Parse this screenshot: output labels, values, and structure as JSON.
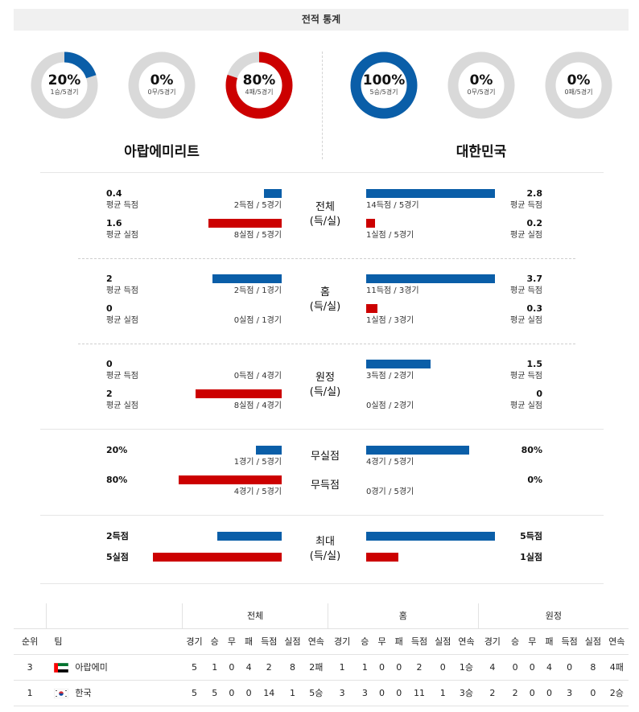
{
  "title": "전적 통계",
  "teams": {
    "left": {
      "name": "아랍에미리트",
      "donuts": [
        {
          "pct": "20%",
          "sub": "1승/5경기",
          "value": 0.2,
          "color": "#0a5ea8"
        },
        {
          "pct": "0%",
          "sub": "0무/5경기",
          "value": 0,
          "color": "#888888"
        },
        {
          "pct": "80%",
          "sub": "4패/5경기",
          "value": 0.8,
          "color": "#cc0000"
        }
      ]
    },
    "right": {
      "name": "대한민국",
      "donuts": [
        {
          "pct": "100%",
          "sub": "5승/5경기",
          "value": 1.0,
          "color": "#0a5ea8"
        },
        {
          "pct": "0%",
          "sub": "0무/5경기",
          "value": 0,
          "color": "#888888"
        },
        {
          "pct": "0%",
          "sub": "0패/5경기",
          "value": 0,
          "color": "#cc0000"
        }
      ]
    }
  },
  "sections": {
    "total": {
      "label_top": "전체",
      "label_bottom": "(득/실)",
      "left_scored": {
        "value": "0.4",
        "caption": "평균 득점",
        "detail": "2득점 / 5경기",
        "fill": 0.14
      },
      "left_conceded": {
        "value": "1.6",
        "caption": "평균 실점",
        "detail": "8실점 / 5경기",
        "fill": 0.57
      },
      "right_scored": {
        "value": "2.8",
        "caption": "평균 득점",
        "detail": "14득점 / 5경기",
        "fill": 1.0
      },
      "right_conceded": {
        "value": "0.2",
        "caption": "평균 실점",
        "detail": "1실점 / 5경기",
        "fill": 0.07
      }
    },
    "home": {
      "label_top": "홈",
      "label_bottom": "(득/실)",
      "left_scored": {
        "value": "2",
        "caption": "평균 득점",
        "detail": "2득점 / 1경기",
        "fill": 0.54
      },
      "left_conceded": {
        "value": "0",
        "caption": "평균 실점",
        "detail": "0실점 / 1경기",
        "fill": 0
      },
      "right_scored": {
        "value": "3.7",
        "caption": "평균 득점",
        "detail": "11득점 / 3경기",
        "fill": 1.0
      },
      "right_conceded": {
        "value": "0.3",
        "caption": "평균 실점",
        "detail": "1실점 / 3경기",
        "fill": 0.09
      }
    },
    "away": {
      "label_top": "원정",
      "label_bottom": "(득/실)",
      "left_scored": {
        "value": "0",
        "caption": "평균 득점",
        "detail": "0득점 / 4경기",
        "fill": 0
      },
      "left_conceded": {
        "value": "2",
        "caption": "평균 실점",
        "detail": "8실점 / 4경기",
        "fill": 0.67
      },
      "right_scored": {
        "value": "1.5",
        "caption": "평균 득점",
        "detail": "3득점 / 2경기",
        "fill": 0.5
      },
      "right_conceded": {
        "value": "0",
        "caption": "평균 실점",
        "detail": "0실점 / 2경기",
        "fill": 0
      }
    },
    "cleansheet": {
      "label_clean": "무실점",
      "label_noscore": "무득점",
      "left_clean": {
        "value": "20%",
        "detail": "1경기 / 5경기",
        "fill": 0.2
      },
      "left_noscore": {
        "value": "80%",
        "detail": "4경기 / 5경기",
        "fill": 0.8
      },
      "right_clean": {
        "value": "80%",
        "detail": "4경기 / 5경기",
        "fill": 0.8
      },
      "right_noscore": {
        "value": "0%",
        "detail": "0경기 / 5경기",
        "fill": 0
      }
    },
    "max": {
      "label_top": "최대",
      "label_bottom": "(득/실)",
      "left_scored": {
        "value": "2득점",
        "fill": 0.5
      },
      "left_conceded": {
        "value": "5실점",
        "fill": 1.0
      },
      "right_scored": {
        "value": "5득점",
        "fill": 1.0
      },
      "right_conceded": {
        "value": "1실점",
        "fill": 0.25
      }
    }
  },
  "table": {
    "groups": [
      "전체",
      "홈",
      "원정"
    ],
    "headers": [
      "순위",
      "팀",
      "경기",
      "승",
      "무",
      "패",
      "득점",
      "실점",
      "연속",
      "경기",
      "승",
      "무",
      "패",
      "득점",
      "실점",
      "연속",
      "경기",
      "승",
      "무",
      "패",
      "득점",
      "실점",
      "연속"
    ],
    "rows": [
      {
        "flag": "uae",
        "cells": [
          "3",
          "아랍에미",
          "5",
          "1",
          "0",
          "4",
          "2",
          "8",
          "2패",
          "1",
          "1",
          "0",
          "0",
          "2",
          "0",
          "1승",
          "4",
          "0",
          "0",
          "4",
          "0",
          "8",
          "4패"
        ]
      },
      {
        "flag": "korea",
        "cells": [
          "1",
          "한국",
          "5",
          "5",
          "0",
          "0",
          "14",
          "1",
          "5승",
          "3",
          "3",
          "0",
          "0",
          "11",
          "1",
          "3승",
          "2",
          "2",
          "0",
          "0",
          "3",
          "0",
          "2승"
        ]
      }
    ]
  }
}
